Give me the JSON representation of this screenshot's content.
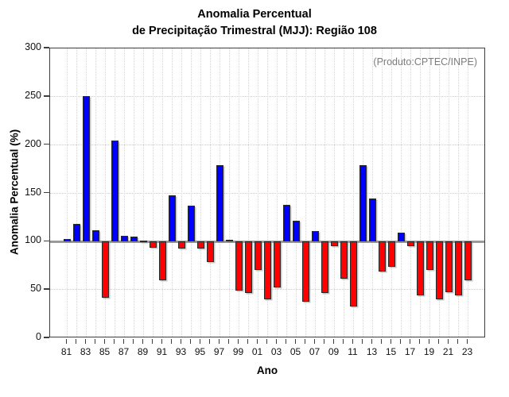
{
  "figure": {
    "title_line1": "Anomalia Percentual",
    "title_line2": "de Precipitação Trimestral (MJJ): Região 108"
  },
  "chart_data": {
    "type": "bar",
    "title": "Anomalia Percentual de Precipitação Trimestral (MJJ): Região 108",
    "xlabel": "Ano",
    "ylabel": "Anomalia Percentual (%)",
    "annotation": "(Produto:CPTEC/INPE)",
    "ylim": [
      0,
      300
    ],
    "y_ticks": [
      0,
      50,
      100,
      150,
      200,
      250,
      300
    ],
    "baseline": 100,
    "grid": true,
    "legend": "none",
    "bar_color_above": "#0000FF",
    "bar_color_below": "#FF0000",
    "baseline_color": "#9a9a9a",
    "x_tick_labels": [
      "81",
      "83",
      "85",
      "87",
      "89",
      "91",
      "93",
      "95",
      "97",
      "99",
      "01",
      "03",
      "05",
      "07",
      "09",
      "11",
      "13",
      "15",
      "17",
      "19",
      "21",
      "23"
    ],
    "years": [
      1981,
      1982,
      1983,
      1984,
      1985,
      1986,
      1987,
      1988,
      1989,
      1990,
      1991,
      1992,
      1993,
      1994,
      1995,
      1996,
      1997,
      1998,
      1999,
      2000,
      2001,
      2002,
      2003,
      2004,
      2005,
      2006,
      2007,
      2008,
      2009,
      2010,
      2011,
      2012,
      2013,
      2014,
      2015,
      2016,
      2017,
      2018,
      2019,
      2020,
      2021,
      2022,
      2023
    ],
    "values": [
      103,
      118,
      251,
      112,
      42,
      205,
      106,
      105,
      101,
      94,
      60,
      148,
      93,
      137,
      93,
      79,
      179,
      102,
      49,
      47,
      71,
      40,
      53,
      138,
      122,
      38,
      111,
      47,
      95,
      62,
      33,
      179,
      145,
      69,
      74,
      109,
      95,
      44,
      71,
      40,
      48,
      44,
      60
    ]
  }
}
